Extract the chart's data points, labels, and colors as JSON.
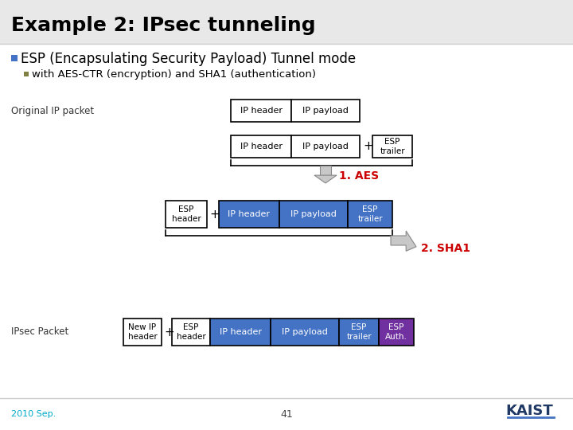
{
  "title": "Example 2: IPsec tunneling",
  "bullet1": "ESP (Encapsulating Security Payload) Tunnel mode",
  "bullet2": "with AES-CTR (encryption) and SHA1 (authentication)",
  "slide_bg": "#ffffff",
  "title_bar_color": "#e8e8e8",
  "title_color": "#000000",
  "bullet1_color": "#000000",
  "bullet2_color": "#000000",
  "bullet1_marker_color": "#4472c4",
  "bullet2_marker_color": "#808040",
  "label_original": "Original IP packet",
  "label_ipsec": "IPsec Packet",
  "aes_label": "1. AES",
  "sha1_label": "2. SHA1",
  "aes_color": "#cc0000",
  "sha1_color": "#cc0000",
  "box_outline": "#000000",
  "blue_fill": "#4472c4",
  "purple_fill": "#7030a0",
  "white_fill": "#ffffff",
  "blue_text": "#ffffff",
  "black_text": "#000000",
  "footer_left": "2010 Sep.",
  "footer_left_color": "#00aacc",
  "footer_center": "41",
  "kaist_color": "#1f3864",
  "kaist_line_color": "#4472c4"
}
